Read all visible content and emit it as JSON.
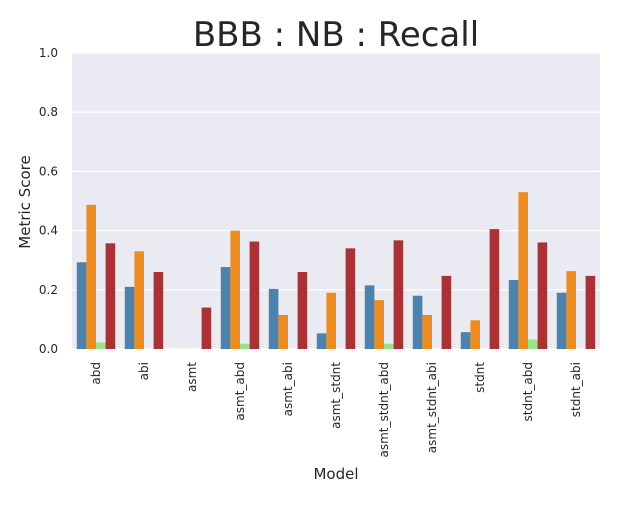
{
  "chart_data": {
    "type": "bar",
    "title": "BBB : NB : Recall",
    "xlabel": "Model",
    "ylabel": "Metric Score",
    "ylim": [
      0,
      1.0
    ],
    "yticks": [
      "0.0",
      "0.2",
      "0.4",
      "0.6",
      "0.8",
      "1.0"
    ],
    "grid": true,
    "categories": [
      "abd",
      "abi",
      "asmt",
      "asmt_abd",
      "asmt_abi",
      "asmt_stdnt",
      "asmt_stdnt_abd",
      "asmt_stdnt_abi",
      "stdnt",
      "stdnt_abd",
      "stdnt_abi"
    ],
    "series": [
      {
        "color": "#4f81ad",
        "values": [
          0.293,
          0.21,
          0.0,
          0.277,
          0.203,
          0.053,
          0.215,
          0.18,
          0.057,
          0.233,
          0.19
        ]
      },
      {
        "color": "#ec8c22",
        "values": [
          0.487,
          0.33,
          0.0,
          0.4,
          0.115,
          0.19,
          0.165,
          0.115,
          0.097,
          0.53,
          0.263
        ]
      },
      {
        "color": "#9ae38a",
        "values": [
          0.022,
          0.0,
          0.0,
          0.018,
          0.0,
          0.0,
          0.018,
          0.0,
          0.0,
          0.032,
          0.0
        ]
      },
      {
        "color": "#a83236",
        "values": [
          0.357,
          0.26,
          0.14,
          0.363,
          0.26,
          0.34,
          0.367,
          0.247,
          0.405,
          0.36,
          0.247
        ]
      }
    ],
    "colors": {
      "plot_background": "#eaeaf2",
      "gridline": "#ffffff"
    }
  }
}
